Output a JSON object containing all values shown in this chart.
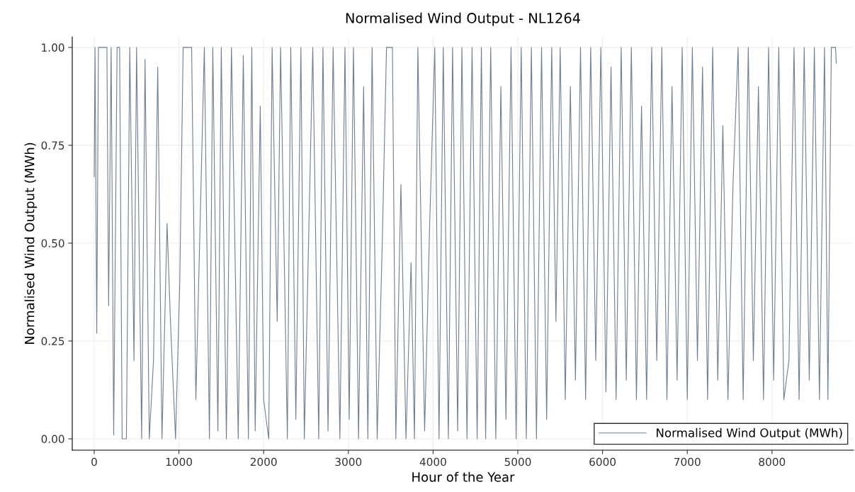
{
  "chart_data": {
    "type": "line",
    "title": "Normalised Wind Output - NL1264",
    "xlabel": "Hour of the Year",
    "ylabel": "Normalised Wind Output (MWh)",
    "x": [
      0,
      10,
      30,
      50,
      150,
      170,
      200,
      230,
      270,
      300,
      330,
      380,
      420,
      470,
      500,
      560,
      600,
      650,
      700,
      750,
      800,
      860,
      900,
      960,
      1010,
      1050,
      1150,
      1200,
      1300,
      1360,
      1400,
      1460,
      1500,
      1560,
      1620,
      1700,
      1760,
      1820,
      1860,
      1900,
      1960,
      2000,
      2060,
      2100,
      2160,
      2200,
      2280,
      2320,
      2380,
      2440,
      2480,
      2540,
      2580,
      2650,
      2700,
      2760,
      2820,
      2900,
      2960,
      3010,
      3060,
      3120,
      3180,
      3230,
      3280,
      3340,
      3400,
      3450,
      3520,
      3560,
      3620,
      3680,
      3740,
      3780,
      3820,
      3900,
      3960,
      4020,
      4070,
      4120,
      4180,
      4230,
      4290,
      4340,
      4400,
      4460,
      4520,
      4570,
      4620,
      4680,
      4740,
      4800,
      4860,
      4920,
      4980,
      5040,
      5100,
      5160,
      5220,
      5280,
      5340,
      5400,
      5450,
      5500,
      5560,
      5620,
      5680,
      5740,
      5800,
      5860,
      5920,
      5980,
      6040,
      6100,
      6160,
      6220,
      6280,
      6340,
      6400,
      6460,
      6520,
      6580,
      6640,
      6700,
      6760,
      6820,
      6880,
      6940,
      7000,
      7060,
      7120,
      7180,
      7240,
      7300,
      7360,
      7420,
      7480,
      7540,
      7600,
      7660,
      7720,
      7780,
      7840,
      7900,
      7960,
      8020,
      8080,
      8140,
      8200,
      8260,
      8320,
      8380,
      8440,
      8500,
      8560,
      8620,
      8660,
      8700,
      8750,
      8759
    ],
    "series": [
      {
        "name": "Normalised Wind Output (MWh)",
        "color": "#6e7f91",
        "values": [
          0.67,
          1.0,
          0.27,
          1.0,
          1.0,
          0.34,
          1.0,
          0.01,
          1.0,
          1.0,
          0.0,
          0.0,
          1.0,
          0.2,
          1.0,
          0.0,
          0.97,
          0.0,
          0.2,
          0.95,
          0.0,
          0.55,
          0.3,
          0.0,
          0.4,
          1.0,
          1.0,
          0.1,
          1.0,
          0.0,
          1.0,
          0.02,
          1.0,
          0.0,
          1.0,
          0.0,
          0.98,
          0.0,
          1.0,
          0.02,
          0.85,
          0.1,
          0.0,
          1.0,
          0.3,
          1.0,
          0.0,
          1.0,
          0.05,
          1.0,
          0.0,
          0.6,
          1.0,
          0.0,
          1.0,
          0.02,
          1.0,
          0.0,
          1.0,
          0.05,
          1.0,
          0.0,
          0.9,
          0.0,
          1.0,
          0.0,
          0.5,
          1.0,
          1.0,
          0.0,
          0.65,
          0.0,
          0.45,
          0.0,
          1.0,
          0.02,
          0.55,
          1.0,
          0.0,
          1.0,
          0.0,
          1.0,
          0.02,
          1.0,
          0.0,
          1.0,
          0.0,
          1.0,
          0.0,
          1.0,
          0.0,
          0.9,
          0.05,
          1.0,
          0.0,
          1.0,
          0.0,
          1.0,
          0.0,
          1.0,
          0.05,
          1.0,
          0.3,
          1.0,
          0.1,
          0.9,
          0.15,
          1.0,
          0.1,
          1.0,
          0.2,
          1.0,
          0.12,
          0.95,
          0.1,
          1.0,
          0.15,
          1.0,
          0.1,
          0.85,
          0.1,
          1.0,
          0.2,
          1.0,
          0.1,
          0.9,
          0.15,
          1.0,
          0.1,
          1.0,
          0.2,
          0.95,
          0.1,
          1.0,
          0.15,
          0.8,
          0.1,
          0.65,
          1.0,
          0.1,
          1.0,
          0.2,
          0.9,
          0.1,
          1.0,
          0.15,
          1.0,
          0.1,
          0.2,
          1.0,
          0.1,
          1.0,
          0.15,
          1.0,
          0.1,
          1.0,
          0.1,
          1.0,
          1.0,
          0.96
        ]
      }
    ],
    "xlim": [
      -259,
      8963
    ],
    "ylim": [
      -0.029,
      1.027
    ],
    "xticks": [
      0,
      1000,
      2000,
      3000,
      4000,
      5000,
      6000,
      7000,
      8000
    ],
    "yticks": [
      {
        "value": 0,
        "label": "0.00"
      },
      {
        "value": 0.25,
        "label": "0.25"
      },
      {
        "value": 0.5,
        "label": "0.50"
      },
      {
        "value": 0.75,
        "label": "0.75"
      },
      {
        "value": 1,
        "label": "1.00"
      }
    ],
    "grid": true,
    "legend": "bottom right",
    "marker": "none",
    "line_style": "solid"
  }
}
